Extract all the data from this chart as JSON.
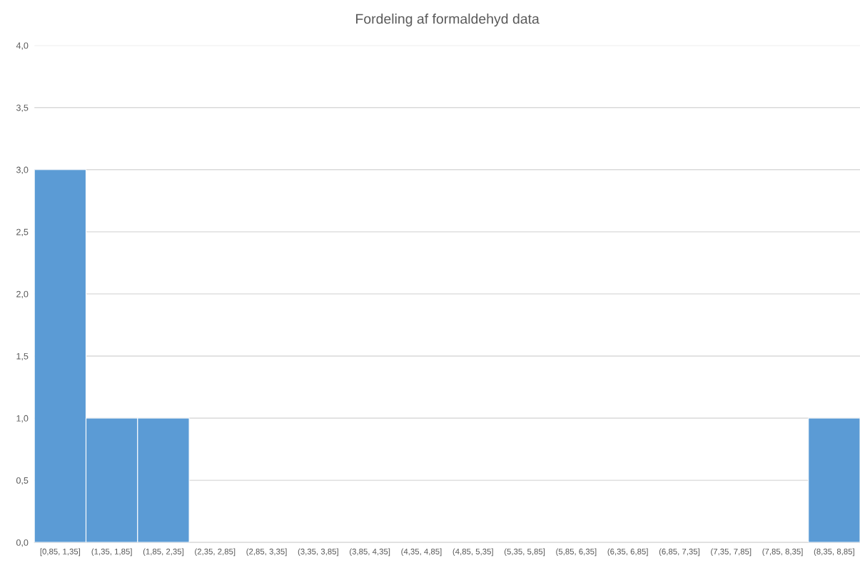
{
  "chart_data": {
    "type": "bar",
    "title": "Fordeling af formaldehyd data",
    "categories": [
      "[0,85, 1,35]",
      "(1,35, 1,85]",
      "(1,85, 2,35]",
      "(2,35, 2,85]",
      "(2,85, 3,35]",
      "(3,35, 3,85]",
      "(3,85, 4,35]",
      "(4,35, 4,85]",
      "(4,85, 5,35]",
      "(5,35, 5,85]",
      "(5,85, 6,35]",
      "(6,35, 6,85]",
      "(6,85, 7,35]",
      "(7,35, 7,85]",
      "(7,85, 8,35]",
      "(8,35, 8,85]"
    ],
    "values": [
      3,
      1,
      1,
      0,
      0,
      0,
      0,
      0,
      0,
      0,
      0,
      0,
      0,
      0,
      0,
      1
    ],
    "color": "#5b9bd5",
    "ylim": [
      0,
      4
    ],
    "yticks": [
      {
        "value": 0,
        "label": "0,0"
      },
      {
        "value": 0.5,
        "label": "0,5"
      },
      {
        "value": 1,
        "label": "1,0"
      },
      {
        "value": 1.5,
        "label": "1,5"
      },
      {
        "value": 2,
        "label": "2,0"
      },
      {
        "value": 2.5,
        "label": "2,5"
      },
      {
        "value": 3,
        "label": "3,0"
      },
      {
        "value": 3.5,
        "label": "3,5"
      },
      {
        "value": 4,
        "label": "4,0"
      }
    ],
    "grid": "y"
  }
}
